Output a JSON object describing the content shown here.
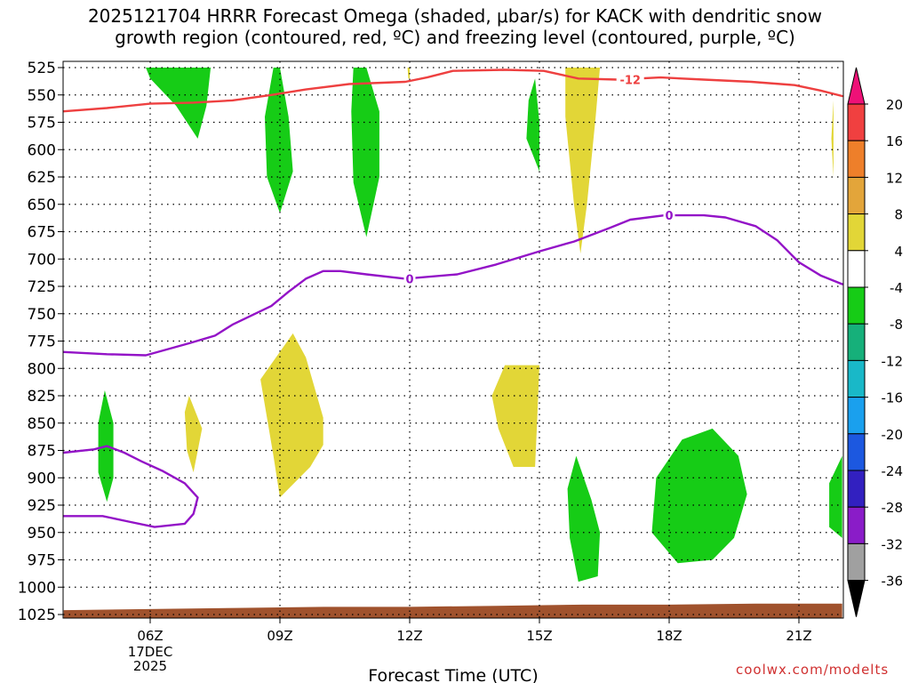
{
  "chart": {
    "title_line1": "2025121704 HRRR Forecast Omega (shaded, μbar/s) for KACK with dendritic snow",
    "title_line2": "growth region (contoured, red, ºC) and freezing level (contoured, purple, ºC)",
    "xlabel": "Forecast Time (UTC)",
    "date_label": "17DEC",
    "year_label": "2025",
    "credit": "coolwx.com/modelts"
  },
  "chart_data": {
    "type": "heatmap",
    "title": "2025121704 HRRR Forecast Omega (shaded, μbar/s) for KACK with dendritic snow growth region (contoured, red, ºC) and freezing level (contoured, purple, ºC)",
    "xlabel": "Forecast Time (UTC)",
    "ylabel": "",
    "x_ticks": [
      "06Z",
      "09Z",
      "12Z",
      "15Z",
      "18Z",
      "21Z"
    ],
    "x_tick_hours": [
      6,
      9,
      12,
      15,
      18,
      21
    ],
    "xlim": [
      4,
      22
    ],
    "y_ticks": [
      525,
      550,
      575,
      600,
      625,
      650,
      675,
      700,
      725,
      750,
      775,
      800,
      825,
      850,
      875,
      900,
      925,
      950,
      975,
      1000,
      1025
    ],
    "ylim": [
      1025,
      525
    ],
    "grid": true,
    "colorbar": {
      "ticks": [
        20,
        16,
        12,
        8,
        4,
        -4,
        -8,
        -12,
        -16,
        -20,
        -24,
        -28,
        -32,
        -36
      ],
      "bins": [
        {
          "from": 16,
          "to": 20,
          "color": "#f04040"
        },
        {
          "from": 12,
          "to": 16,
          "color": "#ee7f2a"
        },
        {
          "from": 8,
          "to": 12,
          "color": "#e3a53a"
        },
        {
          "from": 4,
          "to": 8,
          "color": "#e2d637"
        },
        {
          "from": -4,
          "to": 4,
          "color": "#ffffff"
        },
        {
          "from": -8,
          "to": -4,
          "color": "#16cc16"
        },
        {
          "from": -12,
          "to": -8,
          "color": "#16b07a"
        },
        {
          "from": -16,
          "to": -12,
          "color": "#19b8c8"
        },
        {
          "from": -20,
          "to": -16,
          "color": "#1aa0ee"
        },
        {
          "from": -24,
          "to": -20,
          "color": "#1c58e0"
        },
        {
          "from": -28,
          "to": -24,
          "color": "#3220c0"
        },
        {
          "from": -32,
          "to": -28,
          "color": "#8a1cc8"
        },
        {
          "from": -36,
          "to": -32,
          "color": "#a0a0a0"
        }
      ],
      "top_arrow_color": "#ee1177",
      "bottom_arrow_color": "#000000"
    },
    "omega_regions": [
      {
        "category": "upward",
        "color": "#16cc16",
        "points": [
          [
            5.9,
            525
          ],
          [
            7.4,
            525
          ],
          [
            7.3,
            560
          ],
          [
            7.1,
            590
          ],
          [
            6.6,
            560
          ],
          [
            6.0,
            535
          ]
        ]
      },
      {
        "category": "upward",
        "color": "#16cc16",
        "points": [
          [
            9.0,
            525
          ],
          [
            9.2,
            570
          ],
          [
            9.3,
            620
          ],
          [
            9.0,
            658
          ],
          [
            8.7,
            625
          ],
          [
            8.65,
            570
          ],
          [
            8.85,
            525
          ]
        ]
      },
      {
        "category": "upward",
        "color": "#16cc16",
        "points": [
          [
            10.7,
            525
          ],
          [
            11.0,
            525
          ],
          [
            11.3,
            565
          ],
          [
            11.3,
            625
          ],
          [
            11.0,
            680
          ],
          [
            10.7,
            630
          ],
          [
            10.65,
            565
          ]
        ]
      },
      {
        "category": "upward",
        "color": "#16cc16",
        "points": [
          [
            14.9,
            535
          ],
          [
            15.0,
            575
          ],
          [
            15.0,
            620
          ],
          [
            14.7,
            590
          ],
          [
            14.75,
            555
          ]
        ]
      },
      {
        "category": "downward",
        "color": "#e2d637",
        "points": [
          [
            11.95,
            525
          ],
          [
            12.0,
            525
          ],
          [
            12.0,
            535
          ],
          [
            11.97,
            535
          ]
        ]
      },
      {
        "category": "downward",
        "color": "#e2d637",
        "points": [
          [
            15.6,
            525
          ],
          [
            16.4,
            525
          ],
          [
            16.3,
            570
          ],
          [
            16.1,
            650
          ],
          [
            15.95,
            695
          ],
          [
            15.8,
            650
          ],
          [
            15.6,
            570
          ]
        ]
      },
      {
        "category": "downward",
        "color": "#e2d637",
        "points": [
          [
            21.8,
            555
          ],
          [
            21.8,
            625
          ],
          [
            21.75,
            590
          ]
        ]
      },
      {
        "category": "downward",
        "color": "#e2d637",
        "points": [
          [
            9.3,
            768
          ],
          [
            9.6,
            790
          ],
          [
            10.0,
            845
          ],
          [
            10.0,
            870
          ],
          [
            9.7,
            890
          ],
          [
            9.0,
            918
          ],
          [
            8.85,
            880
          ],
          [
            8.55,
            810
          ]
        ]
      },
      {
        "category": "downward",
        "color": "#e2d637",
        "points": [
          [
            6.9,
            825
          ],
          [
            7.2,
            855
          ],
          [
            7.0,
            895
          ],
          [
            6.85,
            875
          ],
          [
            6.8,
            840
          ]
        ]
      },
      {
        "category": "downward",
        "color": "#e2d637",
        "points": [
          [
            14.2,
            797
          ],
          [
            15.0,
            797
          ],
          [
            14.95,
            845
          ],
          [
            14.9,
            890
          ],
          [
            14.4,
            890
          ],
          [
            14.05,
            855
          ],
          [
            13.9,
            825
          ]
        ]
      },
      {
        "category": "upward",
        "color": "#16cc16",
        "points": [
          [
            4.95,
            820
          ],
          [
            5.15,
            850
          ],
          [
            5.15,
            900
          ],
          [
            5.0,
            922
          ],
          [
            4.8,
            895
          ],
          [
            4.8,
            850
          ]
        ]
      },
      {
        "category": "upward",
        "color": "#16cc16",
        "points": [
          [
            15.85,
            880
          ],
          [
            16.2,
            920
          ],
          [
            16.4,
            950
          ],
          [
            16.35,
            990
          ],
          [
            15.9,
            995
          ],
          [
            15.7,
            955
          ],
          [
            15.65,
            910
          ]
        ]
      },
      {
        "category": "upward",
        "color": "#16cc16",
        "points": [
          [
            18.3,
            865
          ],
          [
            19.0,
            855
          ],
          [
            19.6,
            880
          ],
          [
            19.8,
            915
          ],
          [
            19.5,
            955
          ],
          [
            19.0,
            975
          ],
          [
            18.2,
            978
          ],
          [
            17.6,
            950
          ],
          [
            17.7,
            900
          ]
        ]
      },
      {
        "category": "upward",
        "color": "#16cc16",
        "points": [
          [
            22.0,
            880
          ],
          [
            22.0,
            955
          ],
          [
            21.7,
            945
          ],
          [
            21.7,
            905
          ]
        ]
      }
    ],
    "contours": [
      {
        "label": "-12",
        "color": "#ee4040",
        "points": [
          [
            4,
            565
          ],
          [
            5,
            562
          ],
          [
            6,
            558
          ],
          [
            7,
            557
          ],
          [
            7.9,
            555
          ],
          [
            8.8,
            550
          ],
          [
            9.6,
            545
          ],
          [
            10.6,
            540
          ],
          [
            11.9,
            538
          ],
          [
            12.4,
            534
          ],
          [
            13.0,
            528
          ],
          [
            14.2,
            527
          ],
          [
            15.1,
            528
          ],
          [
            15.9,
            535
          ],
          [
            16.8,
            536
          ],
          [
            17.8,
            534
          ],
          [
            18.8,
            536
          ],
          [
            19.9,
            538
          ],
          [
            20.9,
            541
          ],
          [
            21.5,
            546
          ],
          [
            22,
            551
          ]
        ]
      },
      {
        "label": "0",
        "color": "#9313c7",
        "points": [
          [
            4,
            785
          ],
          [
            5,
            787
          ],
          [
            5.9,
            788
          ],
          [
            6.9,
            777
          ],
          [
            7.5,
            770
          ],
          [
            7.9,
            760
          ],
          [
            8.8,
            743
          ],
          [
            9.2,
            730
          ],
          [
            9.6,
            718
          ],
          [
            10.0,
            711
          ],
          [
            10.4,
            711
          ],
          [
            11.0,
            714
          ],
          [
            11.9,
            718
          ],
          [
            13.1,
            714
          ],
          [
            14.0,
            705
          ],
          [
            15.0,
            693
          ],
          [
            15.8,
            684
          ],
          [
            16.6,
            672
          ],
          [
            17.1,
            664
          ],
          [
            17.9,
            660
          ],
          [
            18.8,
            660
          ],
          [
            19.3,
            662
          ],
          [
            20.0,
            670
          ],
          [
            20.5,
            683
          ],
          [
            21.0,
            703
          ],
          [
            21.5,
            715
          ],
          [
            22,
            723
          ]
        ]
      },
      {
        "label": "",
        "color": "#9313c7",
        "points": [
          [
            4,
            877
          ],
          [
            4.7,
            874
          ],
          [
            5.0,
            871
          ],
          [
            5.4,
            877
          ],
          [
            5.8,
            885
          ],
          [
            6.3,
            894
          ],
          [
            6.8,
            905
          ],
          [
            7.1,
            918
          ],
          [
            7.0,
            933
          ],
          [
            6.8,
            942
          ],
          [
            6.1,
            945
          ],
          [
            5.5,
            940
          ],
          [
            4.9,
            935
          ],
          [
            4,
            935
          ]
        ]
      }
    ],
    "contour_labels": [
      {
        "text": "-12",
        "x": 17.1,
        "y": 536
      },
      {
        "text": "0",
        "x": 12.0,
        "y": 718
      },
      {
        "text": "0",
        "x": 18.0,
        "y": 660
      }
    ],
    "terrain": {
      "color": "#a0522d",
      "top": [
        [
          4,
          1021
        ],
        [
          8,
          1019
        ],
        [
          10,
          1018
        ],
        [
          12,
          1018
        ],
        [
          14,
          1017
        ],
        [
          16,
          1016
        ],
        [
          18,
          1016
        ],
        [
          20,
          1015
        ],
        [
          22,
          1015
        ]
      ]
    }
  }
}
